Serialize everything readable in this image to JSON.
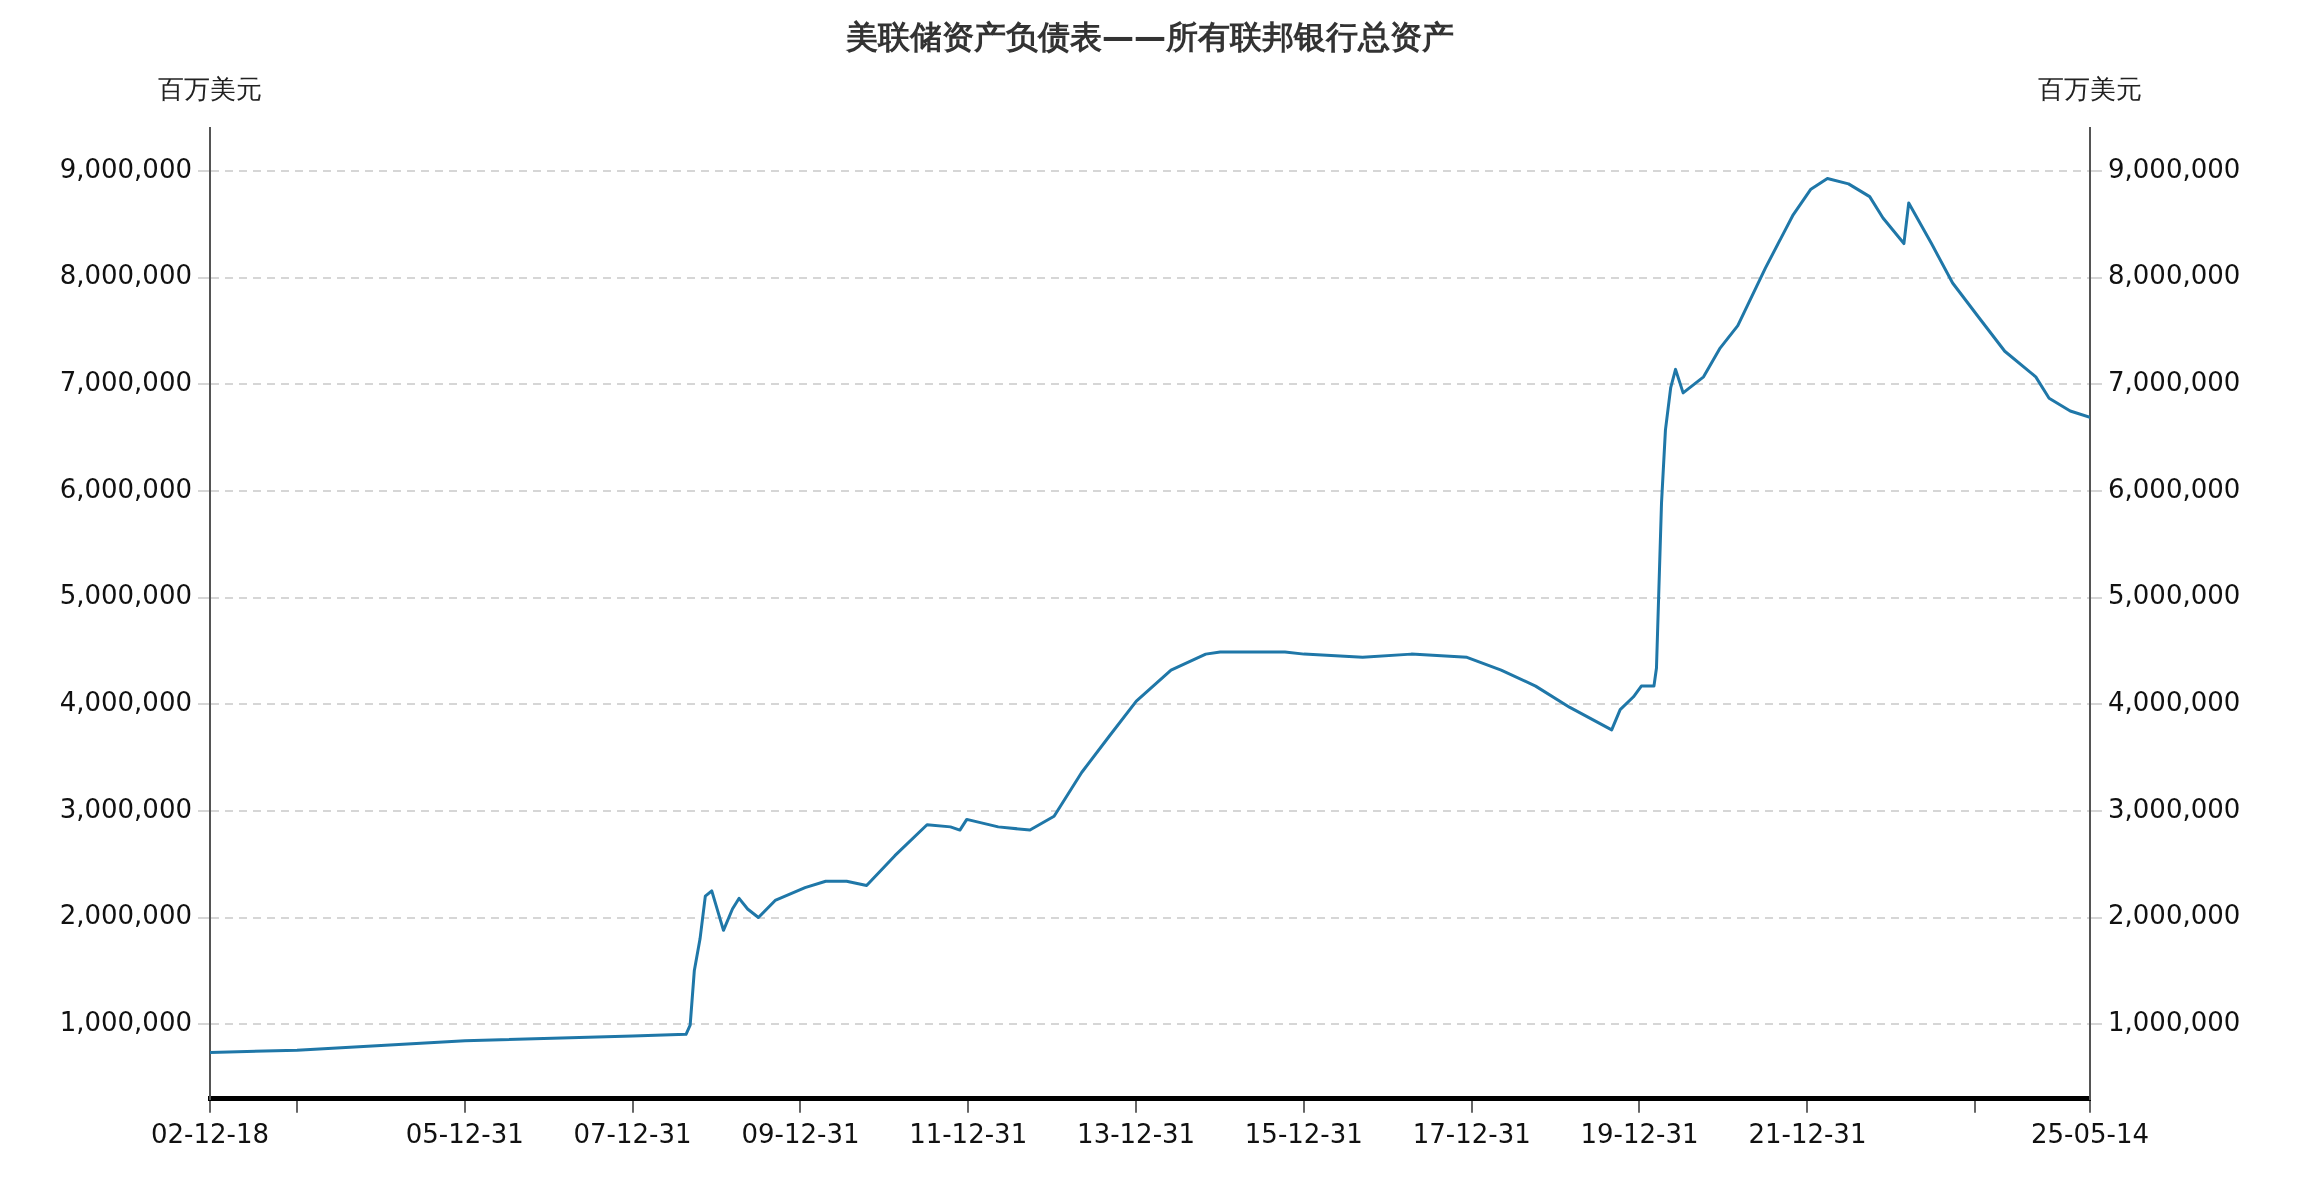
{
  "chart_data": {
    "type": "line",
    "title": "美联储资产负债表——所有联邦银行总资产",
    "ylabel": "百万美元",
    "y2label": "百万美元",
    "x": [
      "2002-12-18",
      "2004-01-01",
      "2006-01-01",
      "2008-01-01",
      "2008-08-20",
      "2008-09-07",
      "2008-09-25",
      "2008-10-20",
      "2008-11-12",
      "2008-12-10",
      "2009-01-30",
      "2009-03-10",
      "2009-04-08",
      "2009-05-15",
      "2009-07-01",
      "2009-09-12",
      "2010-01-20",
      "2010-04-20",
      "2010-07-20",
      "2010-10-15",
      "2011-02-15",
      "2011-07-05",
      "2011-10-15",
      "2011-11-25",
      "2011-12-25",
      "2012-05-10",
      "2012-09-25",
      "2013-01-08",
      "2013-05-08",
      "2013-09-05",
      "2014-01-01",
      "2014-06-01",
      "2014-10-30",
      "2015-01-01",
      "2015-10-10",
      "2016-01-01",
      "2016-09-12",
      "2017-04-12",
      "2017-12-10",
      "2018-05-08",
      "2018-10-05",
      "2019-03-03",
      "2019-09-01",
      "2019-10-08",
      "2019-12-05",
      "2020-01-08",
      "2020-03-03",
      "2020-03-14",
      "2020-04-05",
      "2020-04-22",
      "2020-05-15",
      "2020-06-05",
      "2020-07-08",
      "2020-10-05",
      "2020-12-16",
      "2021-03-03",
      "2021-07-01",
      "2021-10-30",
      "2022-01-15",
      "2022-03-28",
      "2022-06-28",
      "2022-09-28",
      "2022-11-25",
      "2023-02-24",
      "2023-03-17",
      "2023-06-24",
      "2023-09-24",
      "2024-01-22",
      "2024-05-08",
      "2024-09-20",
      "2024-11-17",
      "2025-02-17",
      "2025-05-14"
    ],
    "series": [
      {
        "color": "#1f77a8",
        "values": [
          735000,
          755000,
          845000,
          890000,
          905000,
          990000,
          1500000,
          1800000,
          2200000,
          2250000,
          1880000,
          2080000,
          2180000,
          2080000,
          2000000,
          2160000,
          2280000,
          2340000,
          2340000,
          2300000,
          2580000,
          2870000,
          2850000,
          2820000,
          2920000,
          2850000,
          2820000,
          2950000,
          3360000,
          3700000,
          4030000,
          4320000,
          4470000,
          4490000,
          4490000,
          4470000,
          4440000,
          4470000,
          4440000,
          4320000,
          4170000,
          3970000,
          3760000,
          3950000,
          4070000,
          4170000,
          4170000,
          4340000,
          5890000,
          6570000,
          6970000,
          7140000,
          6920000,
          7070000,
          7340000,
          7550000,
          8090000,
          8590000,
          8830000,
          8930000,
          8880000,
          8760000,
          8560000,
          8320000,
          8700000,
          8320000,
          7950000,
          7610000,
          7310000,
          7070000,
          6870000,
          6750000,
          6690000
        ]
      }
    ],
    "xlim": [
      "2002-12-18",
      "2025-05-14"
    ],
    "xticks": [
      {
        "value": "2002-12-18",
        "label": "02-12-18"
      },
      {
        "value": "2003-12-31",
        "label": null
      },
      {
        "value": "2005-12-31",
        "label": "05-12-31"
      },
      {
        "value": "2007-12-31",
        "label": "07-12-31"
      },
      {
        "value": "2009-12-31",
        "label": "09-12-31"
      },
      {
        "value": "2011-12-31",
        "label": "11-12-31"
      },
      {
        "value": "2013-12-31",
        "label": "13-12-31"
      },
      {
        "value": "2015-12-31",
        "label": "15-12-31"
      },
      {
        "value": "2017-12-31",
        "label": "17-12-31"
      },
      {
        "value": "2019-12-31",
        "label": "19-12-31"
      },
      {
        "value": "2021-12-31",
        "label": "21-12-31"
      },
      {
        "value": "2023-12-31",
        "label": null
      },
      {
        "value": "2025-05-14",
        "label": "25-05-14"
      }
    ],
    "ylim": [
      300000,
      9400000
    ],
    "yticks": [
      {
        "value": 1000000,
        "label": "1,000,000"
      },
      {
        "value": 2000000,
        "label": "2,000,000"
      },
      {
        "value": 3000000,
        "label": "3,000,000"
      },
      {
        "value": 4000000,
        "label": "4,000,000"
      },
      {
        "value": 5000000,
        "label": "5,000,000"
      },
      {
        "value": 6000000,
        "label": "6,000,000"
      },
      {
        "value": 7000000,
        "label": "7,000,000"
      },
      {
        "value": 8000000,
        "label": "8,000,000"
      },
      {
        "value": 9000000,
        "label": "9,000,000"
      }
    ],
    "y2lim": [
      300000,
      9400000
    ],
    "y2ticks": [
      {
        "value": 1000000,
        "label": "1,000,000"
      },
      {
        "value": 2000000,
        "label": "2,000,000"
      },
      {
        "value": 3000000,
        "label": "3,000,000"
      },
      {
        "value": 4000000,
        "label": "4,000,000"
      },
      {
        "value": 5000000,
        "label": "5,000,000"
      },
      {
        "value": 6000000,
        "label": "6,000,000"
      },
      {
        "value": 7000000,
        "label": "7,000,000"
      },
      {
        "value": 8000000,
        "label": "8,000,000"
      },
      {
        "value": 9000000,
        "label": "9,000,000"
      }
    ],
    "grid": "y",
    "legend": false,
    "marker": "none",
    "line_style": "solid"
  }
}
